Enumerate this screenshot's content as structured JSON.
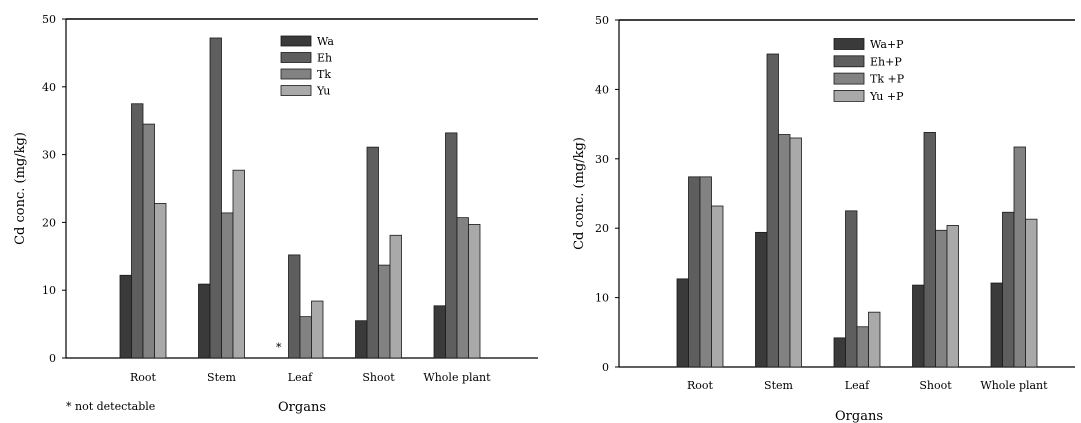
{
  "colors": {
    "Wa": "#3a3a3a",
    "Eh": "#5e5e5e",
    "Tk": "#828282",
    "Yu": "#a9a9a9"
  },
  "chart_data": [
    {
      "type": "bar",
      "categories": [
        "Root",
        "Stem",
        "Leaf",
        "Shoot",
        "Whole plant"
      ],
      "xlabel": "Organs",
      "ylabel": "Cd conc. (mg/kg)",
      "ylim": [
        0,
        50
      ],
      "yticks": [
        "0",
        "10",
        "20",
        "30",
        "40",
        "50"
      ],
      "legend_position": "top-right",
      "grid": false,
      "series": [
        {
          "name": "Wa",
          "values": [
            12.2,
            10.9,
            null,
            5.5,
            7.7
          ]
        },
        {
          "name": "Eh",
          "values": [
            37.5,
            47.2,
            15.2,
            31.1,
            33.2
          ]
        },
        {
          "name": "Tk",
          "values": [
            34.5,
            21.4,
            6.1,
            13.7,
            20.7
          ]
        },
        {
          "name": "Yu",
          "values": [
            22.8,
            27.7,
            8.4,
            18.1,
            19.7
          ]
        }
      ],
      "annotations": [
        {
          "category": "Leaf",
          "series": "Wa",
          "text": "*"
        }
      ],
      "footnote": "* not detectable"
    },
    {
      "type": "bar",
      "categories": [
        "Root",
        "Stem",
        "Leaf",
        "Shoot",
        "Whole plant"
      ],
      "xlabel": "Organs",
      "ylabel": "Cd conc. (mg/kg)",
      "ylim": [
        0,
        50
      ],
      "yticks": [
        "0",
        "10",
        "20",
        "30",
        "40",
        "50"
      ],
      "legend_position": "top-right",
      "grid": false,
      "series": [
        {
          "name": "Wa+P",
          "values": [
            12.7,
            19.4,
            4.2,
            11.8,
            12.1
          ]
        },
        {
          "name": "Eh+P",
          "values": [
            27.4,
            45.1,
            22.5,
            33.8,
            22.3
          ]
        },
        {
          "name": "Tk +P",
          "values": [
            27.4,
            33.5,
            5.8,
            19.7,
            31.7
          ]
        },
        {
          "name": "Yu +P",
          "values": [
            23.2,
            33.0,
            7.9,
            20.4,
            21.3
          ]
        }
      ]
    }
  ]
}
